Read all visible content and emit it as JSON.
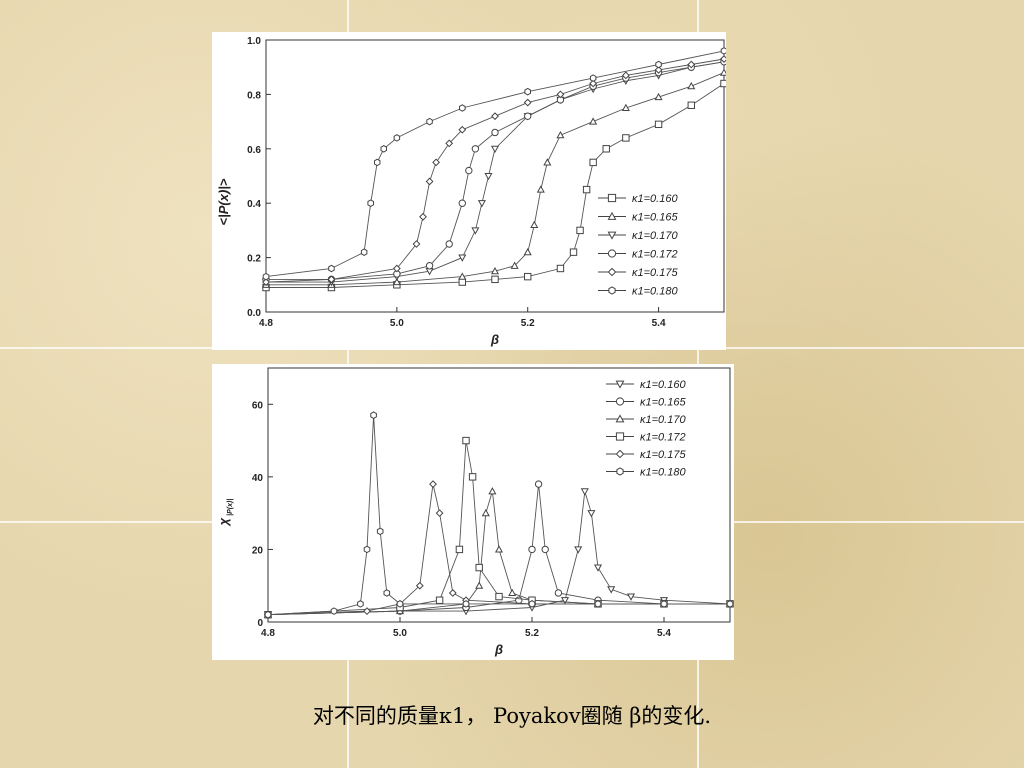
{
  "caption": "对不同的质量κ1， Poyakov圈随 β的变化.",
  "chart_data": [
    {
      "type": "line",
      "xlabel": "β",
      "ylabel": "<|P(x)|>",
      "xlim": [
        4.8,
        5.5
      ],
      "ylim": [
        0.0,
        1.0
      ],
      "xticks": [
        "4.8",
        "5.0",
        "5.2",
        "5.4"
      ],
      "yticks": [
        "0.0",
        "0.2",
        "0.4",
        "0.6",
        "0.8",
        "1.0"
      ],
      "legend_position": "middle-right",
      "series": [
        {
          "name": "κ1=0.160",
          "marker": "square",
          "x": [
            4.8,
            4.9,
            5.0,
            5.1,
            5.15,
            5.2,
            5.25,
            5.27,
            5.28,
            5.29,
            5.3,
            5.32,
            5.35,
            5.4,
            5.45,
            5.5
          ],
          "y": [
            0.09,
            0.09,
            0.1,
            0.11,
            0.12,
            0.13,
            0.16,
            0.22,
            0.3,
            0.45,
            0.55,
            0.6,
            0.64,
            0.69,
            0.76,
            0.84
          ]
        },
        {
          "name": "κ1=0.165",
          "marker": "triangle-up",
          "x": [
            4.8,
            4.9,
            5.0,
            5.1,
            5.15,
            5.18,
            5.2,
            5.21,
            5.22,
            5.23,
            5.25,
            5.3,
            5.35,
            5.4,
            5.45,
            5.5
          ],
          "y": [
            0.1,
            0.1,
            0.11,
            0.13,
            0.15,
            0.17,
            0.22,
            0.32,
            0.45,
            0.55,
            0.65,
            0.7,
            0.75,
            0.79,
            0.83,
            0.88
          ]
        },
        {
          "name": "κ1=0.170",
          "marker": "triangle-down",
          "x": [
            4.8,
            4.9,
            5.0,
            5.05,
            5.1,
            5.12,
            5.13,
            5.14,
            5.15,
            5.2,
            5.25,
            5.3,
            5.35,
            5.4,
            5.45,
            5.5
          ],
          "y": [
            0.11,
            0.11,
            0.13,
            0.15,
            0.2,
            0.3,
            0.4,
            0.5,
            0.6,
            0.72,
            0.78,
            0.82,
            0.85,
            0.87,
            0.9,
            0.92
          ]
        },
        {
          "name": "κ1=0.172",
          "marker": "circle",
          "x": [
            4.8,
            4.9,
            5.0,
            5.05,
            5.08,
            5.1,
            5.11,
            5.12,
            5.15,
            5.2,
            5.25,
            5.3,
            5.35,
            5.4,
            5.45,
            5.5
          ],
          "y": [
            0.12,
            0.12,
            0.14,
            0.17,
            0.25,
            0.4,
            0.52,
            0.6,
            0.66,
            0.72,
            0.78,
            0.83,
            0.86,
            0.88,
            0.9,
            0.92
          ]
        },
        {
          "name": "κ1=0.175",
          "marker": "diamond",
          "x": [
            4.8,
            4.9,
            5.0,
            5.03,
            5.04,
            5.05,
            5.06,
            5.08,
            5.1,
            5.15,
            5.2,
            5.25,
            5.3,
            5.35,
            5.4,
            5.45,
            5.5
          ],
          "y": [
            0.11,
            0.12,
            0.16,
            0.25,
            0.35,
            0.48,
            0.55,
            0.62,
            0.67,
            0.72,
            0.77,
            0.8,
            0.84,
            0.87,
            0.89,
            0.91,
            0.93
          ]
        },
        {
          "name": "κ1=0.180",
          "marker": "hexagon",
          "x": [
            4.8,
            4.9,
            4.95,
            4.96,
            4.97,
            4.98,
            5.0,
            5.05,
            5.1,
            5.2,
            5.3,
            5.4,
            5.5
          ],
          "y": [
            0.13,
            0.16,
            0.22,
            0.4,
            0.55,
            0.6,
            0.64,
            0.7,
            0.75,
            0.81,
            0.86,
            0.91,
            0.96
          ]
        }
      ]
    },
    {
      "type": "line",
      "xlabel": "β",
      "ylabel": "χ",
      "ylabel_sub": "|P(x)|",
      "xlim": [
        4.8,
        5.5
      ],
      "ylim": [
        0,
        70
      ],
      "xticks": [
        "4.8",
        "5.0",
        "5.2",
        "5.4"
      ],
      "yticks": [
        "0",
        "20",
        "40",
        "60"
      ],
      "legend_position": "top-right",
      "series": [
        {
          "name": "κ1=0.160",
          "marker": "triangle-down",
          "x": [
            4.8,
            5.0,
            5.1,
            5.2,
            5.25,
            5.27,
            5.28,
            5.29,
            5.3,
            5.32,
            5.35,
            5.4,
            5.5
          ],
          "y": [
            2,
            3,
            3,
            4,
            6,
            20,
            36,
            30,
            15,
            9,
            7,
            6,
            5
          ]
        },
        {
          "name": "κ1=0.165",
          "marker": "circle",
          "x": [
            4.8,
            5.0,
            5.1,
            5.18,
            5.2,
            5.21,
            5.22,
            5.24,
            5.3,
            5.4,
            5.5
          ],
          "y": [
            2,
            3,
            4,
            6,
            20,
            38,
            20,
            8,
            6,
            5,
            5
          ]
        },
        {
          "name": "κ1=0.170",
          "marker": "triangle-up",
          "x": [
            4.8,
            5.0,
            5.1,
            5.12,
            5.13,
            5.14,
            5.15,
            5.17,
            5.2,
            5.3,
            5.4,
            5.5
          ],
          "y": [
            2,
            3,
            5,
            10,
            30,
            36,
            20,
            8,
            6,
            5,
            5,
            5
          ]
        },
        {
          "name": "κ1=0.172",
          "marker": "square",
          "x": [
            4.8,
            5.0,
            5.06,
            5.09,
            5.1,
            5.11,
            5.12,
            5.15,
            5.2,
            5.3,
            5.4,
            5.5
          ],
          "y": [
            2,
            4,
            6,
            20,
            50,
            40,
            15,
            7,
            6,
            5,
            5,
            5
          ]
        },
        {
          "name": "κ1=0.175",
          "marker": "diamond",
          "x": [
            4.8,
            4.95,
            5.0,
            5.03,
            5.05,
            5.06,
            5.08,
            5.1,
            5.2,
            5.3,
            5.4,
            5.5
          ],
          "y": [
            2,
            3,
            5,
            10,
            38,
            30,
            8,
            6,
            5,
            5,
            5,
            5
          ]
        },
        {
          "name": "κ1=0.180",
          "marker": "hexagon",
          "x": [
            4.8,
            4.9,
            4.94,
            4.95,
            4.96,
            4.97,
            4.98,
            5.0,
            5.1,
            5.2,
            5.3,
            5.4,
            5.5
          ],
          "y": [
            2,
            3,
            5,
            20,
            57,
            25,
            8,
            5,
            5,
            5,
            5,
            5,
            5
          ]
        }
      ]
    }
  ]
}
